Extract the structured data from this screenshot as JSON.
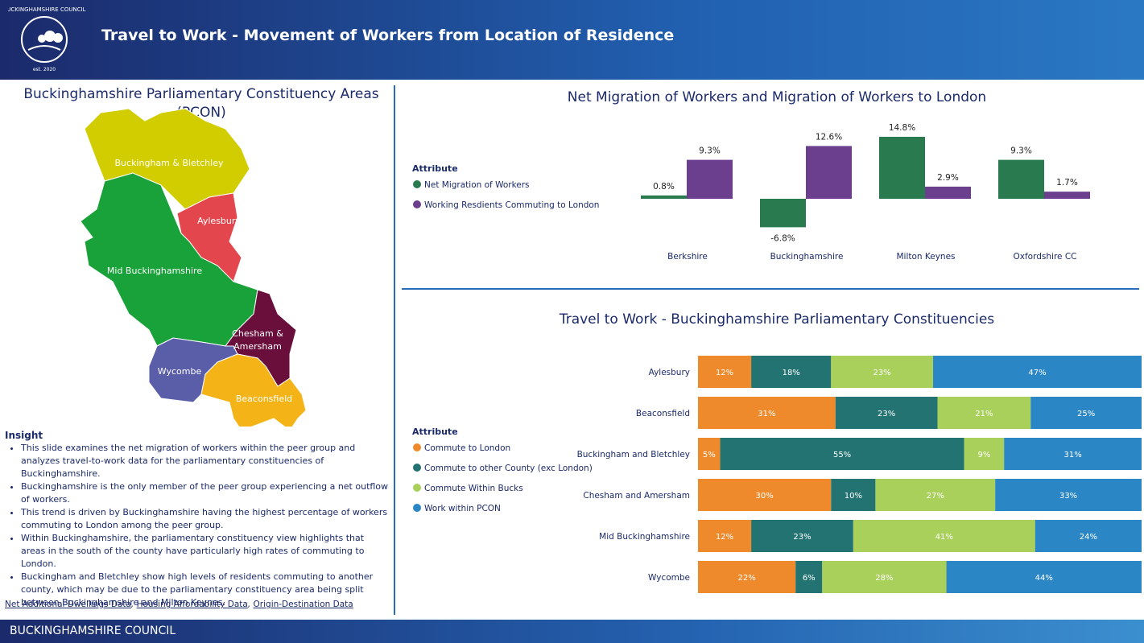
{
  "header": {
    "title": "Travel to Work - Movement of Workers from Location of Residence",
    "logo_text": "BUCKINGHAMSHIRE COUNCIL",
    "logo_est": "est. 2020"
  },
  "map": {
    "title": "Buckinghamshire Parliamentary Constituency Areas (PCON)",
    "regions": [
      "Buckingham & Bletchley",
      "Aylesbury",
      "Mid Buckinghamshire",
      "Chesham & Amersham",
      "Wycombe",
      "Beaconsfield"
    ]
  },
  "insight": {
    "title": "Insight",
    "bullets": [
      "This slide examines the net migration of workers within the peer group and analyzes travel-to-work data for the parliamentary constituencies of Buckinghamshire.",
      "Buckinghamshire is the only member of the peer group experiencing a net outflow of workers.",
      "This trend is driven by Buckinghamshire having the highest percentage of workers commuting to London among the peer group.",
      "Within Buckinghamshire, the parliamentary constituency view highlights that areas in the south of the county have particularly high rates of commuting to London.",
      "Buckingham and Bletchley show high levels of residents commuting to another county, which may be due to the parliamentary constituency area being split between Buckinghamshire and Milton Keynes."
    ]
  },
  "links": [
    "Net Additional Dwellings Data",
    "Housing Affordability Data",
    "Origin-Destination Data"
  ],
  "footer": "BUCKINGHAMSHIRE COUNCIL",
  "chart_data": [
    {
      "type": "bar",
      "title": "Net Migration of Workers and Migration of Workers to London",
      "legend_title": "Attribute",
      "categories": [
        "Berkshire",
        "Buckinghamshire",
        "Milton Keynes",
        "Oxfordshire CC"
      ],
      "series": [
        {
          "name": "Net Migration of Workers",
          "color": "#2a7a4f",
          "values": [
            0.8,
            -6.8,
            14.8,
            9.3
          ],
          "value_labels": [
            "0.8%",
            "-6.8%",
            "14.8%",
            "9.3%"
          ]
        },
        {
          "name": "Working Resdients Commuting to London",
          "color": "#6b3f8e",
          "values": [
            9.3,
            12.6,
            2.9,
            1.7
          ],
          "value_labels": [
            "9.3%",
            "12.6%",
            "2.9%",
            "1.7%"
          ]
        }
      ]
    },
    {
      "type": "stacked-hbar",
      "title": "Travel to Work - Buckinghamshire Parliamentary Constituencies",
      "legend_title": "Attribute",
      "categories": [
        "Aylesbury",
        "Beaconsfield",
        "Buckingham and Bletchley",
        "Chesham and Amersham",
        "Mid Buckinghamshire",
        "Wycombe"
      ],
      "series": [
        {
          "name": "Commute to London",
          "color": "#ef8a2c",
          "values": [
            12,
            31,
            5,
            30,
            12,
            22
          ],
          "value_labels": [
            "12%",
            "31%",
            "5%",
            "30%",
            "12%",
            "22%"
          ]
        },
        {
          "name": "Commute to other County (exc London)",
          "color": "#237372",
          "values": [
            18,
            23,
            55,
            10,
            23,
            6
          ],
          "value_labels": [
            "18%",
            "23%",
            "55%",
            "10%",
            "23%",
            "6%"
          ]
        },
        {
          "name": "Commute Within Bucks",
          "color": "#a8d05a",
          "values": [
            23,
            21,
            9,
            27,
            41,
            28
          ],
          "value_labels": [
            "23%",
            "21%",
            "9%",
            "27%",
            "41%",
            "28%"
          ]
        },
        {
          "name": "Work within PCON",
          "color": "#2b86c6",
          "values": [
            47,
            25,
            31,
            33,
            24,
            44
          ],
          "value_labels": [
            "47%",
            "25%",
            "31%",
            "33%",
            "24%",
            "44%"
          ]
        }
      ]
    }
  ]
}
